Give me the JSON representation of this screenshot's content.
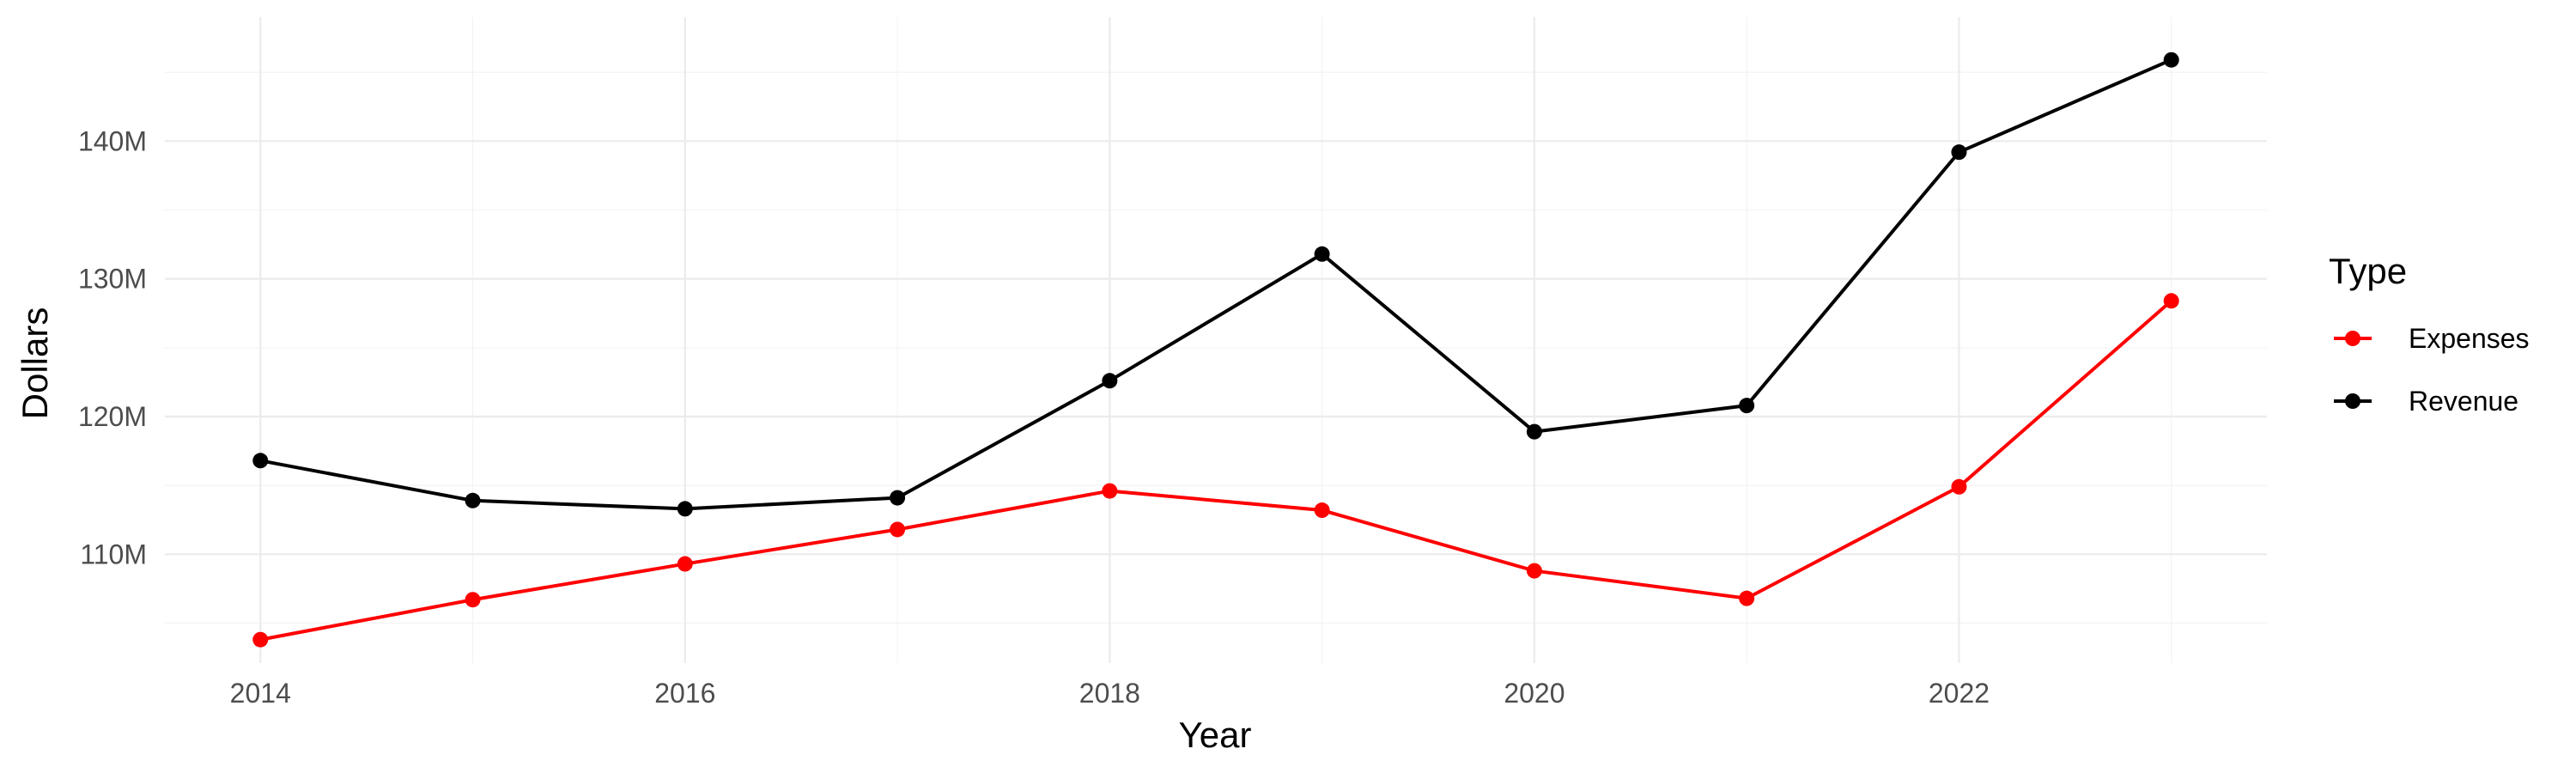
{
  "chart_data": {
    "type": "line",
    "title": "",
    "xlabel": "Year",
    "ylabel": "Dollars",
    "x": [
      2014,
      2015,
      2016,
      2017,
      2018,
      2019,
      2020,
      2021,
      2022,
      2023
    ],
    "xlim": [
      2013.55,
      2023.45
    ],
    "ylim": [
      102.1,
      149.0
    ],
    "x_ticks": [
      2014,
      2016,
      2018,
      2020,
      2022
    ],
    "x_tick_labels": [
      "2014",
      "2016",
      "2018",
      "2020",
      "2022"
    ],
    "y_ticks": [
      110,
      120,
      130,
      140
    ],
    "y_tick_labels": [
      "110M",
      "120M",
      "130M",
      "140M"
    ],
    "y_unit": "millions of dollars",
    "grid": true,
    "legend": {
      "title": "Type",
      "position": "right"
    },
    "series": [
      {
        "name": "Expenses",
        "color": "#ff0000",
        "values": [
          103.8,
          106.7,
          109.3,
          111.8,
          114.6,
          113.2,
          108.8,
          106.8,
          114.9,
          128.4
        ]
      },
      {
        "name": "Revenue",
        "color": "#000000",
        "values": [
          116.8,
          113.9,
          113.3,
          114.1,
          122.6,
          131.8,
          118.9,
          120.8,
          139.2,
          145.9
        ]
      }
    ]
  }
}
